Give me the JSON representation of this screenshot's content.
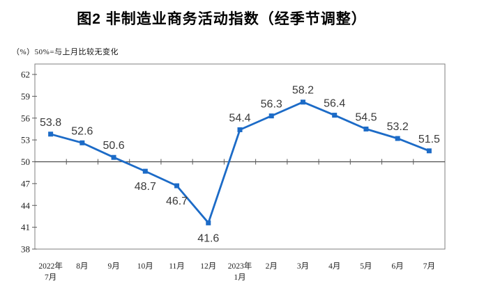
{
  "figure": {
    "title": "图2 非制造业商务活动指数（经季节调整）",
    "subtitle": "（%）50%=与上月比较无变化"
  },
  "colors": {
    "series_line": "#1c6bc7",
    "marker": "#1c6bc7",
    "plot_border": "#7f7f7f",
    "reference_line": "#4d4d4d",
    "tick": "#5a5a5a",
    "data_label": "#3a3a3a",
    "axis_label": "#1f1f1f"
  },
  "chart_data": {
    "type": "line",
    "title": "图2 非制造业商务活动指数（经季节调整）",
    "unit_note": "（%）50%=与上月比较无变化",
    "categories": [
      "2022年7月",
      "8月",
      "9月",
      "10月",
      "11月",
      "12月",
      "2023年1月",
      "2月",
      "3月",
      "4月",
      "5月",
      "6月",
      "7月"
    ],
    "category_labels": [
      [
        "2022年",
        "7月"
      ],
      [
        "8月"
      ],
      [
        "9月"
      ],
      [
        "10月"
      ],
      [
        "11月"
      ],
      [
        "12月"
      ],
      [
        "2023年",
        "1月"
      ],
      [
        "2月"
      ],
      [
        "3月"
      ],
      [
        "4月"
      ],
      [
        "5月"
      ],
      [
        "6月"
      ],
      [
        "7月"
      ]
    ],
    "series": [
      {
        "name": "非制造业商务活动指数（经季节调整）",
        "values": [
          53.8,
          52.6,
          50.6,
          48.7,
          46.7,
          41.6,
          54.4,
          56.3,
          58.2,
          56.4,
          54.5,
          53.2,
          51.5
        ]
      }
    ],
    "data_label_position": [
      "above",
      "above",
      "above",
      "below",
      "below",
      "below",
      "above",
      "above",
      "above",
      "above",
      "above",
      "above",
      "above"
    ],
    "yticks": [
      38,
      41,
      44,
      47,
      50,
      53,
      56,
      59,
      62
    ],
    "ylim": [
      38,
      63.3
    ],
    "reference_line": 50,
    "grid": false,
    "legend": "none",
    "marker_shape": "square"
  }
}
